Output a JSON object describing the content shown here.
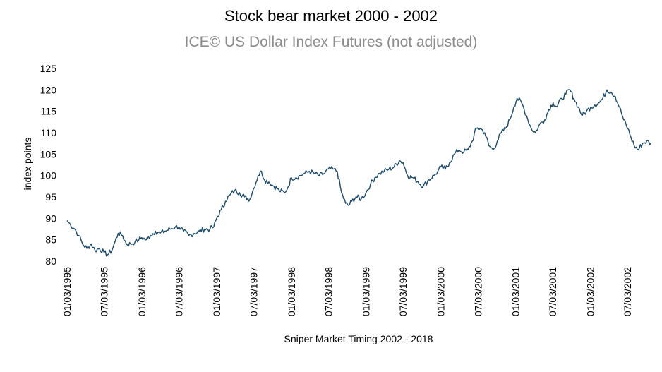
{
  "chart_data": {
    "type": "line",
    "title": "Stock bear market 2000 - 2002",
    "subtitle": "ICE© US Dollar Index Futures (not adjusted)",
    "xlabel": "Sniper Market Timing 2002 - 2018",
    "ylabel": "index points",
    "ylim": [
      80,
      125
    ],
    "yticks": [
      "80",
      "85",
      "90",
      "95",
      "100",
      "105",
      "110",
      "115",
      "120",
      "125"
    ],
    "xticks": [
      "01/03/1995",
      "07/03/1995",
      "01/03/1996",
      "07/03/1996",
      "01/03/1997",
      "07/03/1997",
      "01/03/1998",
      "07/03/1998",
      "01/03/1999",
      "07/03/1999",
      "01/03/2000",
      "07/03/2000",
      "01/03/2001",
      "07/03/2001",
      "01/03/2002",
      "07/03/2002"
    ],
    "grid": false,
    "line_color": "#1b4a6b",
    "series": [
      {
        "x": [
          "1995-01-03",
          "1995-01-20",
          "1995-02-10",
          "1995-03-01",
          "1995-03-20",
          "1995-04-10",
          "1995-05-01",
          "1995-05-20",
          "1995-06-10",
          "1995-07-03",
          "1995-07-20",
          "1995-08-10",
          "1995-08-25",
          "1995-09-10",
          "1995-10-01",
          "1995-10-20",
          "1995-11-10",
          "1995-12-01",
          "1995-12-20",
          "1996-01-03",
          "1996-01-25",
          "1996-02-15",
          "1996-03-10",
          "1996-04-01",
          "1996-04-25",
          "1996-05-20",
          "1996-06-15",
          "1996-07-03",
          "1996-07-25",
          "1996-08-20",
          "1996-09-15",
          "1996-10-10",
          "1996-11-05",
          "1996-12-01",
          "1996-12-20",
          "1997-01-03",
          "1997-01-25",
          "1997-02-15",
          "1997-03-10",
          "1997-04-01",
          "1997-04-25",
          "1997-05-20",
          "1997-06-15",
          "1997-07-03",
          "1997-07-25",
          "1997-08-10",
          "1997-08-25",
          "1997-09-15",
          "1997-10-10",
          "1997-11-05",
          "1997-12-01",
          "1997-12-20",
          "1998-01-03",
          "1998-01-25",
          "1998-02-15",
          "1998-03-10",
          "1998-04-01",
          "1998-04-25",
          "1998-05-20",
          "1998-06-15",
          "1998-07-03",
          "1998-07-25",
          "1998-08-15",
          "1998-09-05",
          "1998-09-25",
          "1998-10-10",
          "1998-10-25",
          "1998-11-15",
          "1998-12-10",
          "1999-01-03",
          "1999-01-25",
          "1999-02-15",
          "1999-03-10",
          "1999-04-01",
          "1999-04-25",
          "1999-05-20",
          "1999-06-15",
          "1999-07-03",
          "1999-07-25",
          "1999-08-20",
          "1999-09-15",
          "1999-10-10",
          "1999-11-05",
          "1999-12-01",
          "1999-12-20",
          "2000-01-03",
          "2000-01-25",
          "2000-02-15",
          "2000-03-10",
          "2000-04-01",
          "2000-04-25",
          "2000-05-15",
          "2000-06-05",
          "2000-06-25",
          "2000-07-15",
          "2000-08-05",
          "2000-08-25",
          "2000-09-15",
          "2000-10-05",
          "2000-10-25",
          "2000-11-15",
          "2000-12-05",
          "2000-12-25",
          "2001-01-10",
          "2001-02-01",
          "2001-02-25",
          "2001-03-20",
          "2001-04-10",
          "2001-05-01",
          "2001-05-25",
          "2001-06-15",
          "2001-07-05",
          "2001-07-25",
          "2001-08-15",
          "2001-09-05",
          "2001-09-25",
          "2001-10-15",
          "2001-11-05",
          "2001-11-25",
          "2001-12-15",
          "2002-01-05",
          "2002-01-25",
          "2002-02-15",
          "2002-03-05",
          "2002-03-25",
          "2002-04-15",
          "2002-05-05",
          "2002-05-25",
          "2002-06-15",
          "2002-07-05",
          "2002-07-20",
          "2002-08-05",
          "2002-08-25",
          "2002-09-15",
          "2002-10-05",
          "2002-10-25"
        ],
        "y": [
          89.5,
          88.5,
          87.5,
          86,
          84,
          83,
          84,
          82.5,
          83,
          82,
          81.5,
          82.5,
          84.5,
          86.5,
          86,
          84,
          84,
          84.5,
          85,
          85.5,
          85,
          86,
          87,
          86.5,
          87,
          87.5,
          88,
          88,
          87,
          86,
          86.5,
          87,
          87.5,
          87.5,
          88,
          90,
          92,
          94,
          95.5,
          96.5,
          96,
          95,
          94.5,
          97,
          100,
          101,
          99,
          98.5,
          97.5,
          96.5,
          96,
          97.5,
          99.5,
          99.5,
          100,
          100.5,
          101,
          100.5,
          100,
          100.5,
          101.5,
          101.5,
          101,
          96,
          93.5,
          93,
          94,
          95,
          94.5,
          96,
          98,
          99.5,
          100.5,
          101,
          101.5,
          102,
          103.5,
          103,
          100,
          99.5,
          98.5,
          97.5,
          99,
          100,
          101,
          102,
          101.5,
          103,
          105,
          106,
          105.5,
          106,
          108,
          111,
          111,
          110,
          107,
          106,
          108,
          110,
          111,
          113,
          116,
          118,
          117,
          114,
          111,
          110,
          112,
          113,
          115.5,
          117,
          116,
          118,
          119,
          120,
          118,
          116,
          114,
          115,
          116,
          116.5,
          117,
          118,
          120,
          119.5,
          118.5,
          116,
          113,
          111,
          109,
          107,
          106,
          107.5,
          108,
          107.5
        ]
      }
    ]
  }
}
